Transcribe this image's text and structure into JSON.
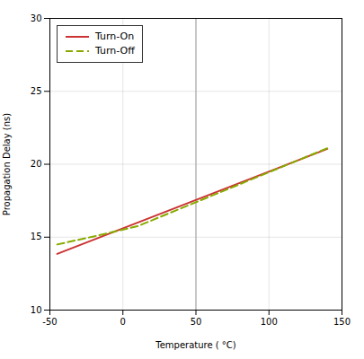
{
  "chart_data": {
    "type": "line",
    "xlabel": "Temperature ( °C)",
    "ylabel": "Propagation Delay (ns)",
    "xlim": [
      -50,
      150
    ],
    "ylim": [
      10,
      30
    ],
    "xticks": [
      -50,
      0,
      50,
      100,
      150
    ],
    "yticks": [
      10,
      15,
      20,
      25,
      30
    ],
    "grid": true,
    "legend": "upper left",
    "series": [
      {
        "name": "Turn-On",
        "color": "#cc3333",
        "line_style": "solid",
        "x": [
          -45,
          140
        ],
        "values": [
          13.85,
          21.05
        ]
      },
      {
        "name": "Turn-Off",
        "color": "#88aa00",
        "line_style": "dashed",
        "x": [
          -45,
          -20,
          -5,
          10,
          140
        ],
        "values": [
          14.5,
          15.05,
          15.4,
          15.75,
          21.1
        ]
      }
    ],
    "vline": {
      "x": 50,
      "color": "#aaaaaa"
    }
  }
}
